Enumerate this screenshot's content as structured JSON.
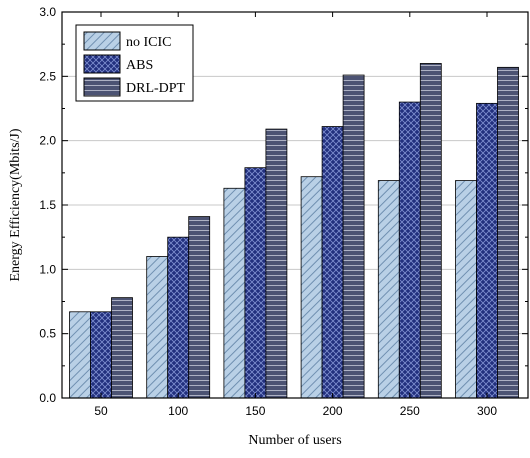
{
  "chart_data": {
    "type": "bar",
    "categories": [
      "50",
      "100",
      "150",
      "200",
      "250",
      "300"
    ],
    "series": [
      {
        "name": "no ICIC",
        "values": [
          0.67,
          1.1,
          1.63,
          1.72,
          1.69,
          1.69
        ]
      },
      {
        "name": "ABS",
        "values": [
          0.67,
          1.25,
          1.79,
          2.11,
          2.3,
          2.29
        ]
      },
      {
        "name": "DRL-DPT",
        "values": [
          0.78,
          1.41,
          2.09,
          2.51,
          2.6,
          2.57
        ]
      }
    ],
    "title": "",
    "xlabel": "Number of  users",
    "ylabel": "Energy Efficiency(Mbits/J)",
    "ylim": [
      0.0,
      3.0
    ],
    "yticks": [
      "0.0",
      "0.5",
      "1.0",
      "1.5",
      "2.0",
      "2.5",
      "3.0"
    ],
    "grid": true,
    "legend_position": "top-left",
    "series_colors": [
      "#a9c4de",
      "#1f2f7a",
      "#4a5070"
    ],
    "series_patterns": [
      "diagonal-hatch",
      "crosshatch",
      "horizontal-lines"
    ]
  }
}
